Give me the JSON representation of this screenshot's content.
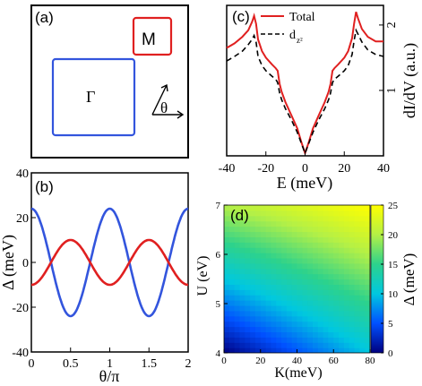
{
  "panels": {
    "a": {
      "label": "(a)",
      "gamma_label": "Γ",
      "m_label": "M",
      "theta_label": "θ",
      "colors": {
        "gamma": "#3355dd",
        "m": "#e02020"
      }
    },
    "c": {
      "label": "(c)",
      "legend": [
        "Total",
        "d",
        "z²"
      ],
      "xlabel": "E (meV)",
      "ylabel": "dI/dV (a.u.)",
      "xticks": [
        "-40",
        "-20",
        "0",
        "20",
        "40"
      ],
      "yticks": [
        "1",
        "2"
      ]
    },
    "b": {
      "label": "(b)",
      "ylabel": "Δ (meV)",
      "xlabel": "θ/π",
      "xticks": [
        "0",
        "0.5",
        "1",
        "1.5",
        "2"
      ],
      "yticks": [
        "-40",
        "-20",
        "0",
        "20",
        "40"
      ]
    },
    "d": {
      "label": "(d)",
      "xlabel": "K(meV)",
      "ylabel": "U (eV)",
      "xticks": [
        "0",
        "20",
        "40",
        "60",
        "80"
      ],
      "yticks": [
        "4",
        "5",
        "6",
        "7"
      ],
      "cbar_label": "Δ (meV)",
      "cbar_ticks": [
        "0",
        "5",
        "10",
        "15",
        "20",
        "25"
      ]
    }
  },
  "chart_data": [
    {
      "panel": "c",
      "type": "line",
      "xlabel": "E (meV)",
      "ylabel": "dI/dV (a.u.)",
      "xlim": [
        -40,
        40
      ],
      "ylim": [
        0,
        2.3
      ],
      "series": [
        {
          "name": "Total",
          "color": "#e02020",
          "style": "solid",
          "x": [
            -40,
            -36,
            -32,
            -29,
            -27,
            -26,
            -25,
            -24,
            -22,
            -20,
            -17,
            -15,
            -14,
            -13,
            -12,
            -10,
            -7,
            -4,
            -2,
            0,
            2,
            4,
            7,
            10,
            12,
            13,
            14,
            15,
            17,
            20,
            22,
            24,
            25,
            26,
            27,
            29,
            32,
            36,
            40
          ],
          "y": [
            1.65,
            1.72,
            1.82,
            1.92,
            2.05,
            2.14,
            2.02,
            1.78,
            1.6,
            1.5,
            1.4,
            1.34,
            1.3,
            1.1,
            0.98,
            0.82,
            0.62,
            0.42,
            0.22,
            0.04,
            0.22,
            0.42,
            0.62,
            0.82,
            0.98,
            1.1,
            1.3,
            1.34,
            1.4,
            1.5,
            1.6,
            1.8,
            2.02,
            2.2,
            2.1,
            1.94,
            1.82,
            1.75,
            1.75
          ]
        },
        {
          "name": "d_z²",
          "color": "#000000",
          "style": "dashed",
          "x": [
            -40,
            -36,
            -32,
            -29,
            -27,
            -26,
            -25,
            -24,
            -22,
            -20,
            -17,
            -15,
            -14,
            -13,
            -12,
            -10,
            -7,
            -4,
            -2,
            0,
            2,
            4,
            7,
            10,
            12,
            13,
            14,
            15,
            17,
            20,
            22,
            24,
            25,
            26,
            27,
            29,
            32,
            36,
            40
          ],
          "y": [
            1.45,
            1.52,
            1.6,
            1.7,
            1.78,
            1.84,
            1.74,
            1.52,
            1.38,
            1.3,
            1.22,
            1.17,
            1.12,
            0.96,
            0.86,
            0.72,
            0.55,
            0.36,
            0.2,
            0.04,
            0.2,
            0.36,
            0.55,
            0.72,
            0.86,
            0.96,
            1.12,
            1.17,
            1.22,
            1.3,
            1.38,
            1.55,
            1.76,
            1.92,
            1.86,
            1.74,
            1.62,
            1.55,
            1.52
          ]
        }
      ]
    },
    {
      "panel": "b",
      "type": "line",
      "xlabel": "θ/π",
      "ylabel": "Δ (meV)",
      "xlim": [
        0,
        2
      ],
      "ylim": [
        -40,
        40
      ],
      "series": [
        {
          "color": "#3355dd",
          "form": "cos4",
          "amplitude": 24
        },
        {
          "color": "#e02020",
          "form": "-cos4",
          "amplitude": 10
        }
      ]
    },
    {
      "panel": "d",
      "type": "heatmap",
      "xlabel": "K(meV)",
      "ylabel": "U (eV)",
      "xlim": [
        0,
        80
      ],
      "ylim": [
        4,
        7
      ],
      "zlim": [
        0,
        25
      ],
      "zlabel": "Δ (meV)",
      "colorscale": [
        "#00007f",
        "#0050ff",
        "#00c8e0",
        "#2dd28c",
        "#b4f046",
        "#ffff00"
      ],
      "corner_values": {
        "K0_U4": 0,
        "K80_U4": 10,
        "K0_U7": 20,
        "K80_U7": 25
      }
    }
  ]
}
